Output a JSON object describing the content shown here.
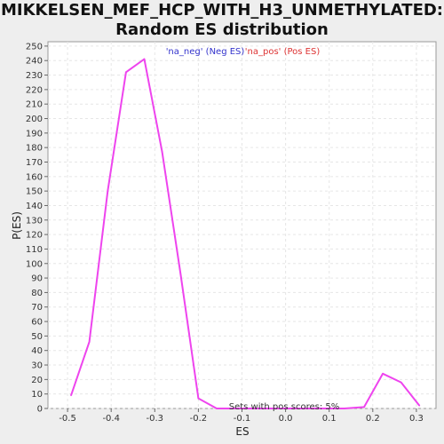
{
  "chart_data": {
    "type": "line",
    "title_line1": "MIKKELSEN_MEF_HCP_WITH_H3_UNMETHYLATED:",
    "title_line2": "Random ES distribution",
    "xlabel": "ES",
    "ylabel": "P(ES)",
    "xlim": [
      -0.545,
      0.345
    ],
    "ylim": [
      0,
      253
    ],
    "x_ticks": [
      -0.5,
      -0.4,
      -0.3,
      -0.2,
      -0.1,
      0.0,
      0.1,
      0.2,
      0.3
    ],
    "x_tick_labels": [
      "-0.5",
      "-0.4",
      "-0.3",
      "-0.2",
      "-0.1",
      "0.0",
      "0.1",
      "0.2",
      "0.3"
    ],
    "y_ticks": [
      0,
      10,
      20,
      30,
      40,
      50,
      60,
      70,
      80,
      90,
      100,
      110,
      120,
      130,
      140,
      150,
      160,
      170,
      180,
      190,
      200,
      210,
      220,
      230,
      240,
      250
    ],
    "grid": true,
    "legend": {
      "placement": "top-center",
      "entries": [
        {
          "label": "'na_neg' (Neg ES)",
          "color": "#3333cc"
        },
        {
          "label": "'na_pos' (Pos ES)",
          "color": "#dd3333"
        }
      ]
    },
    "annotation": "Sets with pos scores: 5%",
    "series": [
      {
        "color": "#ee44ee",
        "x": [
          -0.492,
          -0.45,
          -0.408,
          -0.366,
          -0.324,
          -0.283,
          -0.241,
          -0.2,
          -0.158,
          -0.116,
          -0.074,
          -0.032,
          0.01,
          0.052,
          0.093,
          0.135,
          0.18,
          0.223,
          0.265,
          0.307
        ],
        "y": [
          9,
          46,
          150,
          232,
          241,
          177,
          93,
          7,
          0,
          0,
          0,
          0,
          0,
          0,
          0,
          0,
          1,
          24,
          18,
          2
        ]
      }
    ]
  }
}
